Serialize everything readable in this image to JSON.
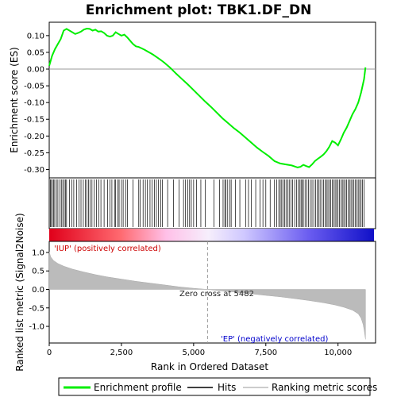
{
  "chart_data": [
    {
      "type": "line",
      "panel": "enrichment",
      "title": "Enrichment plot: TBK1.DF_DN",
      "ylabel": "Enrichment score (ES)",
      "ylim": [
        -0.325,
        0.14
      ],
      "yticks": [
        0.1,
        0.05,
        0.0,
        -0.05,
        -0.1,
        -0.15,
        -0.2,
        -0.25,
        -0.3
      ],
      "ytick_labels": [
        "0.10",
        "0.05",
        "0.00",
        "-0.05",
        "-0.10",
        "-0.15",
        "-0.20",
        "-0.25",
        "-0.30"
      ],
      "xlim": [
        0,
        11300
      ],
      "line_color": "#00ee00",
      "x": [
        0,
        100,
        200,
        300,
        400,
        500,
        600,
        700,
        800,
        900,
        1000,
        1100,
        1200,
        1300,
        1400,
        1500,
        1600,
        1700,
        1800,
        1900,
        2000,
        2100,
        2200,
        2300,
        2400,
        2500,
        2600,
        2700,
        2800,
        2900,
        3000,
        3100,
        3200,
        3300,
        3400,
        3500,
        3600,
        3700,
        3800,
        3900,
        4000,
        4200,
        4400,
        4600,
        4800,
        5000,
        5200,
        5400,
        5600,
        5800,
        6000,
        6200,
        6400,
        6600,
        6800,
        7000,
        7200,
        7400,
        7600,
        7800,
        8000,
        8200,
        8400,
        8600,
        8700,
        8800,
        8900,
        9000,
        9100,
        9200,
        9300,
        9400,
        9500,
        9600,
        9700,
        9800,
        9900,
        10000,
        10100,
        10200,
        10300,
        10400,
        10500,
        10600,
        10700,
        10800,
        10900,
        10950
      ],
      "y": [
        0.01,
        0.04,
        0.06,
        0.075,
        0.09,
        0.115,
        0.12,
        0.115,
        0.11,
        0.105,
        0.108,
        0.112,
        0.118,
        0.121,
        0.12,
        0.115,
        0.118,
        0.112,
        0.113,
        0.108,
        0.1,
        0.097,
        0.1,
        0.11,
        0.105,
        0.1,
        0.103,
        0.095,
        0.085,
        0.075,
        0.068,
        0.066,
        0.062,
        0.058,
        0.053,
        0.048,
        0.043,
        0.037,
        0.031,
        0.025,
        0.018,
        0.003,
        -0.014,
        -0.03,
        -0.046,
        -0.063,
        -0.08,
        -0.097,
        -0.113,
        -0.13,
        -0.147,
        -0.162,
        -0.177,
        -0.19,
        -0.205,
        -0.22,
        -0.235,
        -0.248,
        -0.26,
        -0.275,
        -0.282,
        -0.285,
        -0.288,
        -0.294,
        -0.292,
        -0.286,
        -0.29,
        -0.293,
        -0.285,
        -0.275,
        -0.268,
        -0.262,
        -0.255,
        -0.245,
        -0.232,
        -0.215,
        -0.22,
        -0.228,
        -0.21,
        -0.19,
        -0.175,
        -0.155,
        -0.135,
        -0.12,
        -0.1,
        -0.07,
        -0.03,
        0.005
      ]
    },
    {
      "type": "scatter",
      "panel": "hits",
      "description_ylabel": "",
      "hits": [
        40,
        60,
        110,
        150,
        190,
        250,
        300,
        370,
        420,
        470,
        520,
        560,
        600,
        700,
        780,
        850,
        950,
        1030,
        1100,
        1180,
        1250,
        1300,
        1360,
        1410,
        1480,
        1560,
        1640,
        1720,
        1790,
        1900,
        2020,
        2100,
        2170,
        2260,
        2300,
        2380,
        2420,
        2500,
        2560,
        2650,
        2710,
        2900,
        3100,
        3150,
        3250,
        3330,
        3400,
        3490,
        3560,
        3640,
        3710,
        3780,
        3860,
        3920,
        4100,
        4300,
        4500,
        4650,
        4720,
        4800,
        4860,
        4920,
        5000,
        5100,
        5250,
        5400,
        5700,
        5900,
        6020,
        6080,
        6120,
        6180,
        6250,
        6300,
        6450,
        6600,
        6800,
        6900,
        7000,
        7150,
        7300,
        7400,
        7500,
        7650,
        7800,
        7880,
        7950,
        8000,
        8050,
        8100,
        8150,
        8200,
        8260,
        8310,
        8370,
        8430,
        8500,
        8560,
        8620,
        8680,
        8720,
        8760,
        8800,
        8860,
        8920,
        8980,
        9040,
        9100,
        9160,
        9220,
        9280,
        9330,
        9380,
        9440,
        9500,
        9550,
        9600,
        9650,
        9700,
        9750,
        9800,
        9850,
        9900,
        9950,
        10000,
        10050,
        10100,
        10150,
        10200,
        10250,
        10300,
        10350,
        10400,
        10450,
        10500,
        10550,
        10600,
        10650,
        10700,
        10750,
        10800,
        10850,
        10900
      ]
    },
    {
      "type": "area",
      "panel": "ranked_metric",
      "ylabel": "Ranked list metric (Signal2Noise)",
      "xlabel": "Rank in Ordered Dataset",
      "ylim": [
        -1.45,
        1.3
      ],
      "yticks": [
        1.0,
        0.5,
        0.0,
        -0.5,
        -1.0
      ],
      "ytick_labels": [
        "1.0",
        "0.5",
        "0.0",
        "-0.5",
        "-1.0"
      ],
      "xticks": [
        0,
        2500,
        5000,
        7500,
        10000
      ],
      "xtick_labels": [
        "0",
        "2,500",
        "5,000",
        "7,500",
        "10,000"
      ],
      "x": [
        0,
        50,
        150,
        300,
        500,
        800,
        1200,
        1600,
        2000,
        2500,
        3000,
        3500,
        4000,
        4500,
        5000,
        5482,
        6000,
        6500,
        7000,
        7500,
        8000,
        8500,
        9000,
        9500,
        9900,
        10200,
        10500,
        10700,
        10800,
        10870,
        10910,
        10950
      ],
      "y": [
        1.02,
        0.88,
        0.78,
        0.7,
        0.63,
        0.55,
        0.47,
        0.4,
        0.34,
        0.28,
        0.22,
        0.17,
        0.12,
        0.07,
        0.03,
        0.0,
        -0.04,
        -0.08,
        -0.12,
        -0.16,
        -0.2,
        -0.25,
        -0.3,
        -0.36,
        -0.42,
        -0.48,
        -0.56,
        -0.66,
        -0.78,
        -0.95,
        -1.12,
        -1.35
      ],
      "zero_cross_label": "Zero cross at 5482",
      "zero_cross_rank": 5482,
      "pos_label": "'IUP' (positively correlated)",
      "neg_label": "'EP' (negatively correlated)",
      "pos_color": "#cc0000",
      "neg_color": "#0000cc"
    }
  ],
  "legend": {
    "items": [
      {
        "label": "Enrichment profile",
        "color": "#00ee00"
      },
      {
        "label": "Hits",
        "color": "#000000"
      },
      {
        "label": "Ranking metric scores",
        "color": "#bbbbbb"
      }
    ]
  }
}
